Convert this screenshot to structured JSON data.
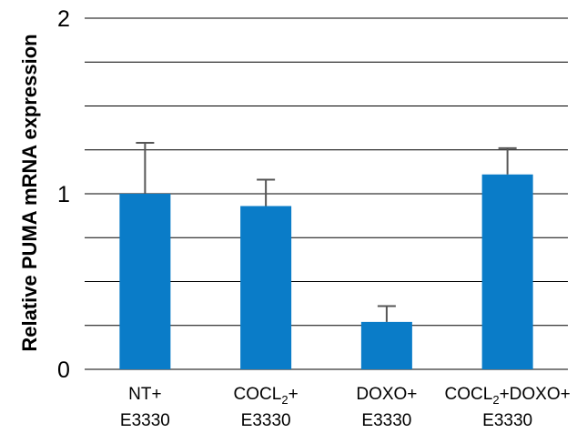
{
  "chart_data": {
    "type": "bar",
    "title": "",
    "xlabel": "",
    "ylabel": "Relative PUMA mRNA expression",
    "ylim": [
      0,
      2
    ],
    "yticks": [
      {
        "value": 0,
        "label": "0"
      },
      {
        "value": 1,
        "label": "1"
      },
      {
        "value": 2,
        "label": "2"
      }
    ],
    "gridlines": [
      0.25,
      0.5,
      0.75,
      1,
      1.25,
      1.5,
      1.75,
      2
    ],
    "grid": true,
    "categories": [
      {
        "line1": "NT+",
        "sub": "",
        "line1_after": "",
        "line2": "E3330"
      },
      {
        "line1": "COCL",
        "sub": "2",
        "line1_after": "+",
        "line2": "E3330"
      },
      {
        "line1": "DOXO+",
        "sub": "",
        "line1_after": "",
        "line2": "E3330"
      },
      {
        "line1": "COCL",
        "sub": "2",
        "line1_after": "+DOXO+",
        "line2": "E3330"
      }
    ],
    "values": [
      1.0,
      0.93,
      0.27,
      1.11
    ],
    "error_upper": [
      1.29,
      1.08,
      0.36,
      1.26
    ],
    "colors": {
      "bar": "#0A7CC8",
      "error": "#555555",
      "grid": "#000000"
    }
  }
}
